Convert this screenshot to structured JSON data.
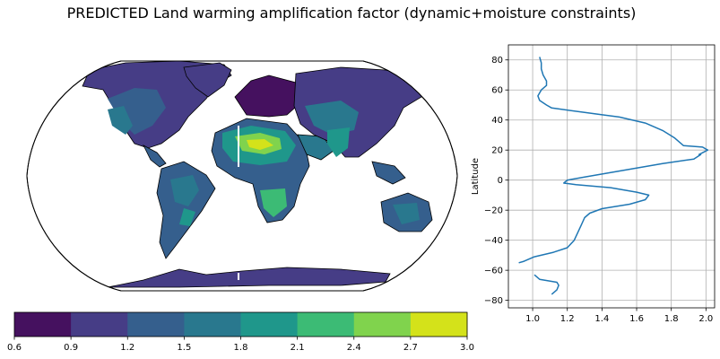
{
  "title": "PREDICTED Land warming amplification factor (dynamic+moisture constraints)",
  "colors": {
    "line": "#1f77b4",
    "ocean": "#ffffff",
    "coast": "#000000",
    "grid": "#b0b0b0",
    "colorbar": [
      "#45115f",
      "#463d86",
      "#355f8d",
      "#29788e",
      "#1f978b",
      "#3cbb75",
      "#80d34d",
      "#d4e21a"
    ]
  },
  "chart_data": [
    {
      "type": "heatmap",
      "name": "map",
      "projection": "Robinson",
      "colorbar": {
        "ticks": [
          "0.6",
          "0.9",
          "1.2",
          "1.5",
          "1.8",
          "2.1",
          "2.4",
          "2.7",
          "3.0"
        ],
        "levels": [
          0.6,
          0.9,
          1.2,
          1.5,
          1.8,
          2.1,
          2.4,
          2.7,
          3.0
        ]
      }
    },
    {
      "type": "line",
      "name": "zonal-mean",
      "xlabel": "",
      "ylabel": "Latitude",
      "xlim": [
        0.86,
        2.05
      ],
      "ylim": [
        -85,
        90
      ],
      "xticks": [
        "1.0",
        "1.2",
        "1.4",
        "1.6",
        "1.8",
        "2.0"
      ],
      "yticks": [
        "80",
        "60",
        "40",
        "20",
        "0",
        "−20",
        "−40",
        "−60",
        "−80"
      ],
      "xtick_values": [
        1.0,
        1.2,
        1.4,
        1.6,
        1.8,
        2.0
      ],
      "ytick_values": [
        80,
        60,
        40,
        20,
        0,
        -20,
        -40,
        -60,
        -80
      ],
      "grid": true,
      "segments": [
        {
          "points": [
            [
              1.04,
              82
            ],
            [
              1.05,
              78
            ],
            [
              1.05,
              74
            ],
            [
              1.06,
              70
            ],
            [
              1.08,
              66
            ],
            [
              1.08,
              63
            ],
            [
              1.05,
              60
            ],
            [
              1.03,
              56
            ],
            [
              1.04,
              53
            ],
            [
              1.08,
              50
            ],
            [
              1.11,
              48
            ],
            [
              1.3,
              45
            ],
            [
              1.5,
              42
            ],
            [
              1.65,
              38
            ],
            [
              1.75,
              33
            ],
            [
              1.82,
              28
            ],
            [
              1.87,
              23
            ],
            [
              1.98,
              22
            ],
            [
              2.01,
              20
            ],
            [
              1.96,
              17
            ],
            [
              1.97,
              17
            ],
            [
              1.93,
              14
            ],
            [
              1.75,
              11
            ],
            [
              1.6,
              8
            ],
            [
              1.45,
              5
            ],
            [
              1.3,
              2
            ],
            [
              1.2,
              0
            ],
            [
              1.18,
              -2
            ],
            [
              1.25,
              -3
            ],
            [
              1.45,
              -5
            ],
            [
              1.6,
              -8
            ],
            [
              1.67,
              -10
            ],
            [
              1.65,
              -13
            ],
            [
              1.56,
              -16
            ],
            [
              1.4,
              -19
            ],
            [
              1.33,
              -22
            ],
            [
              1.3,
              -25
            ],
            [
              1.28,
              -30
            ],
            [
              1.26,
              -35
            ],
            [
              1.24,
              -40
            ],
            [
              1.2,
              -45
            ],
            [
              1.12,
              -48
            ],
            [
              1.01,
              -51
            ],
            [
              0.95,
              -54
            ],
            [
              0.92,
              -55
            ]
          ]
        },
        {
          "points": [
            [
              1.01,
              -63
            ],
            [
              1.04,
              -66
            ],
            [
              1.14,
              -68
            ],
            [
              1.15,
              -70
            ],
            [
              1.14,
              -73
            ],
            [
              1.11,
              -76
            ]
          ]
        }
      ]
    }
  ]
}
